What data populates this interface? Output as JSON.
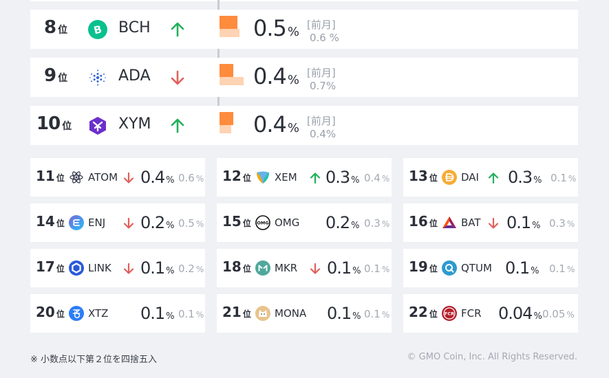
{
  "percent_unit": "%",
  "rank_suffix": "位",
  "top_rows": [
    {
      "rank": "8",
      "symbol": "BCH",
      "trend": "up",
      "value": "0.5",
      "prev_label": "[前月]",
      "prev": "0.6 %",
      "bar_current": 0.5,
      "bar_prev": 0.6
    },
    {
      "rank": "9",
      "symbol": "ADA",
      "trend": "down",
      "value": "0.4",
      "prev_label": "[前月]",
      "prev": "0.7%",
      "bar_current": 0.4,
      "bar_prev": 0.7
    },
    {
      "rank": "10",
      "symbol": "XYM",
      "trend": "up",
      "value": "0.4",
      "prev_label": "[前月]",
      "prev": "0.4%",
      "bar_current": 0.4,
      "bar_prev": 0.4
    }
  ],
  "cards": [
    {
      "rank": "11",
      "symbol": "ATOM",
      "trend": "down",
      "value": "0.4",
      "prev": "0.6"
    },
    {
      "rank": "12",
      "symbol": "XEM",
      "trend": "up",
      "value": "0.3",
      "prev": "0.4"
    },
    {
      "rank": "13",
      "symbol": "DAI",
      "trend": "up",
      "value": "0.3",
      "prev": "0.1"
    },
    {
      "rank": "14",
      "symbol": "ENJ",
      "trend": "down",
      "value": "0.2",
      "prev": "0.5"
    },
    {
      "rank": "15",
      "symbol": "OMG",
      "trend": "none",
      "value": "0.2",
      "prev": "0.3"
    },
    {
      "rank": "16",
      "symbol": "BAT",
      "trend": "down",
      "value": "0.1",
      "prev": "0.3"
    },
    {
      "rank": "17",
      "symbol": "LINK",
      "trend": "down",
      "value": "0.1",
      "prev": "0.2"
    },
    {
      "rank": "18",
      "symbol": "MKR",
      "trend": "down",
      "value": "0.1",
      "prev": "0.1"
    },
    {
      "rank": "19",
      "symbol": "QTUM",
      "trend": "none",
      "value": "0.1",
      "prev": "0.1"
    },
    {
      "rank": "20",
      "symbol": "XTZ",
      "trend": "none",
      "value": "0.1",
      "prev": "0.1"
    },
    {
      "rank": "21",
      "symbol": "MONA",
      "trend": "none",
      "value": "0.1",
      "prev": "0.1"
    },
    {
      "rank": "22",
      "symbol": "FCR",
      "trend": "none",
      "value": "0.04",
      "prev": "0.05"
    }
  ],
  "footer": {
    "note": "※ 小数点以下第２位を四捨五入",
    "copyright": "© GMO Coin, Inc. All Rights Reserved."
  },
  "colors": {
    "up": "#22b05b",
    "down": "#e0605a",
    "bar_current": "#ff8b3d",
    "bar_prev": "#ffd3b3"
  }
}
